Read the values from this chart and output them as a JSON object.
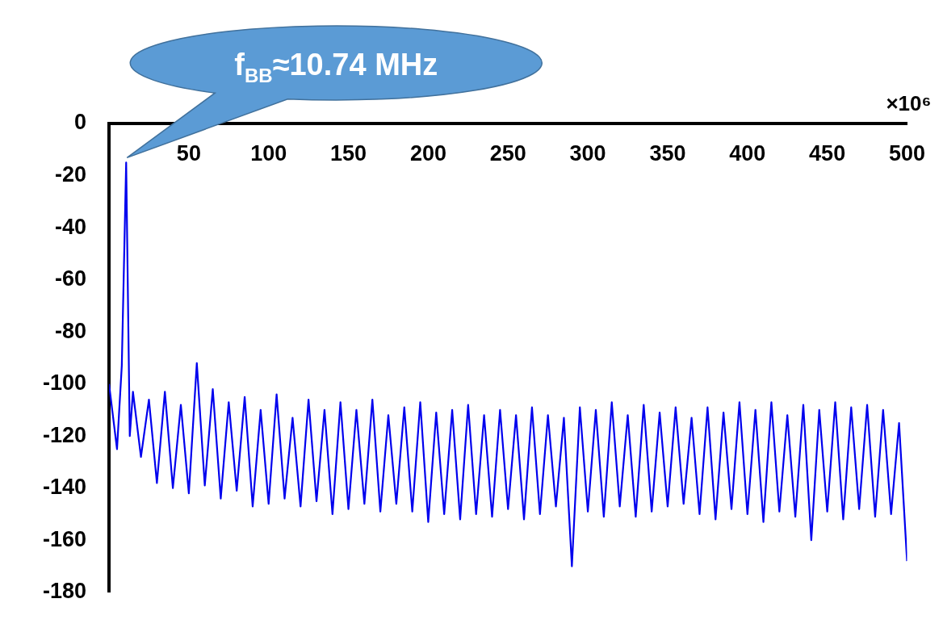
{
  "chart_data": {
    "type": "line",
    "xlim": [
      0,
      500
    ],
    "ylim": [
      -180,
      0
    ],
    "xticks": [
      50,
      100,
      150,
      200,
      250,
      300,
      350,
      400,
      450,
      500
    ],
    "yticks": [
      0,
      -20,
      -40,
      -60,
      -80,
      -100,
      -120,
      -140,
      -160,
      -180
    ],
    "grid": false,
    "legend": false,
    "marker": "none",
    "line_style": "solid",
    "annotations": [
      "×10⁶",
      {
        "text": "f$_{BB}$≈10.74 MHz",
        "x": 10.74,
        "y": -15
      }
    ],
    "series": [
      {
        "color": "#0000ee",
        "x": [
          0,
          5,
          8,
          10.74,
          13,
          15,
          20,
          25,
          30,
          35,
          40,
          45,
          50,
          55,
          60,
          65,
          70,
          75,
          80,
          85,
          90,
          95,
          100,
          105,
          110,
          115,
          120,
          125,
          130,
          135,
          140,
          145,
          150,
          155,
          160,
          165,
          170,
          175,
          180,
          185,
          190,
          195,
          200,
          205,
          210,
          215,
          220,
          225,
          230,
          235,
          240,
          245,
          250,
          255,
          260,
          265,
          270,
          275,
          280,
          285,
          290,
          295,
          300,
          305,
          310,
          315,
          320,
          325,
          330,
          335,
          340,
          345,
          350,
          355,
          360,
          365,
          370,
          375,
          380,
          385,
          390,
          395,
          400,
          405,
          410,
          415,
          420,
          425,
          430,
          435,
          440,
          445,
          450,
          455,
          460,
          465,
          470,
          475,
          480,
          485,
          490,
          495,
          500
        ],
        "values": [
          -100,
          -125,
          -93,
          -15,
          -120,
          -103,
          -128,
          -106,
          -138,
          -103,
          -140,
          -108,
          -142,
          -92,
          -139,
          -102,
          -144,
          -107,
          -141,
          -105,
          -147,
          -110,
          -146,
          -104,
          -144,
          -113,
          -147,
          -106,
          -145,
          -110,
          -150,
          -107,
          -148,
          -110,
          -146,
          -106,
          -149,
          -112,
          -146,
          -109,
          -149,
          -107,
          -153,
          -111,
          -150,
          -110,
          -152,
          -108,
          -150,
          -112,
          -151,
          -110,
          -148,
          -112,
          -152,
          -109,
          -150,
          -112,
          -147,
          -113,
          -170,
          -109,
          -149,
          -110,
          -151,
          -107,
          -147,
          -112,
          -151,
          -108,
          -149,
          -111,
          -147,
          -109,
          -146,
          -113,
          -150,
          -109,
          -152,
          -111,
          -148,
          -107,
          -150,
          -110,
          -153,
          -107,
          -149,
          -112,
          -151,
          -108,
          -160,
          -110,
          -149,
          -107,
          -152,
          -109,
          -148,
          -108,
          -151,
          -110,
          -150,
          -115,
          -168
        ]
      }
    ]
  }
}
